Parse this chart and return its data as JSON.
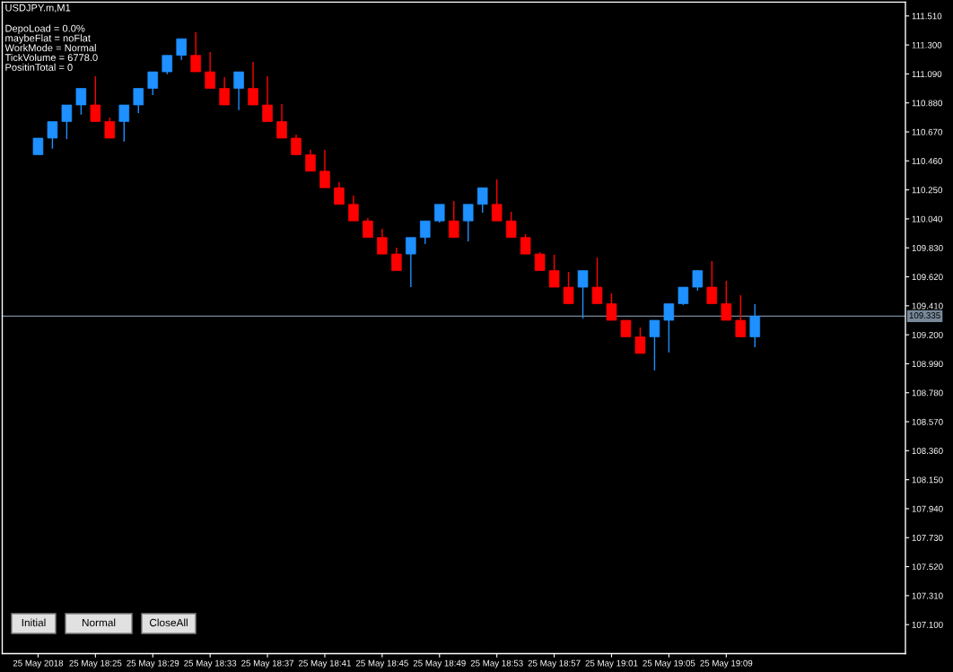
{
  "chart_data": {
    "type": "candlestick",
    "title": "USDJPY.m,M1",
    "annotations": [
      "DepoLoad = 0.0%",
      "maybeFlat = noFlat",
      "WorkMode = Normal",
      "TickVolume = 6778.0",
      "PositinTotal = 0",
      "Initial",
      "Normal",
      "CloseAll"
    ],
    "x": [
      "2018-05-25T18:21",
      "2018-05-25T18:22",
      "2018-05-25T18:23",
      "2018-05-25T18:24",
      "2018-05-25T18:25",
      "2018-05-25T18:26",
      "2018-05-25T18:27",
      "2018-05-25T18:28",
      "2018-05-25T18:29",
      "2018-05-25T18:30",
      "2018-05-25T18:31",
      "2018-05-25T18:32",
      "2018-05-25T18:33",
      "2018-05-25T18:34",
      "2018-05-25T18:35",
      "2018-05-25T18:36",
      "2018-05-25T18:37",
      "2018-05-25T18:38",
      "2018-05-25T18:39",
      "2018-05-25T18:40",
      "2018-05-25T18:41",
      "2018-05-25T18:42",
      "2018-05-25T18:43",
      "2018-05-25T18:44",
      "2018-05-25T18:45",
      "2018-05-25T18:46",
      "2018-05-25T18:47",
      "2018-05-25T18:48",
      "2018-05-25T18:49",
      "2018-05-25T18:50",
      "2018-05-25T18:51",
      "2018-05-25T18:52",
      "2018-05-25T18:53",
      "2018-05-25T18:54",
      "2018-05-25T18:55",
      "2018-05-25T18:56",
      "2018-05-25T18:57",
      "2018-05-25T18:58",
      "2018-05-25T18:59",
      "2018-05-25T19:00",
      "2018-05-25T19:01",
      "2018-05-25T19:02",
      "2018-05-25T19:03",
      "2018-05-25T19:04",
      "2018-05-25T19:05",
      "2018-05-25T19:06",
      "2018-05-25T19:07",
      "2018-05-25T19:08",
      "2018-05-25T19:09",
      "2018-05-25T19:10",
      "2018-05-25T19:11"
    ],
    "ohlc": [
      [
        110.505,
        110.625,
        110.505,
        110.625
      ],
      [
        110.625,
        110.745,
        110.548,
        110.745
      ],
      [
        110.745,
        110.865,
        110.618,
        110.865
      ],
      [
        110.865,
        110.985,
        110.795,
        110.985
      ],
      [
        110.865,
        111.073,
        110.745,
        110.745
      ],
      [
        110.745,
        110.774,
        110.625,
        110.625
      ],
      [
        110.745,
        110.865,
        110.6,
        110.865
      ],
      [
        110.865,
        110.985,
        110.806,
        110.985
      ],
      [
        110.985,
        111.105,
        110.936,
        111.105
      ],
      [
        111.105,
        111.225,
        111.088,
        111.225
      ],
      [
        111.225,
        111.345,
        111.192,
        111.345
      ],
      [
        111.225,
        111.393,
        111.105,
        111.105
      ],
      [
        111.105,
        111.248,
        110.985,
        110.985
      ],
      [
        110.985,
        111.066,
        110.865,
        110.865
      ],
      [
        110.985,
        111.105,
        110.828,
        111.105
      ],
      [
        110.985,
        111.177,
        110.865,
        110.865
      ],
      [
        110.865,
        111.073,
        110.745,
        110.745
      ],
      [
        110.745,
        110.871,
        110.625,
        110.625
      ],
      [
        110.625,
        110.65,
        110.505,
        110.505
      ],
      [
        110.505,
        110.54,
        110.385,
        110.385
      ],
      [
        110.385,
        110.54,
        110.265,
        110.265
      ],
      [
        110.265,
        110.306,
        110.145,
        110.145
      ],
      [
        110.145,
        110.209,
        110.025,
        110.025
      ],
      [
        110.025,
        110.046,
        109.905,
        109.905
      ],
      [
        109.905,
        109.968,
        109.785,
        109.785
      ],
      [
        109.785,
        109.832,
        109.665,
        109.665
      ],
      [
        109.785,
        109.905,
        109.546,
        109.905
      ],
      [
        109.905,
        110.025,
        109.858,
        110.025
      ],
      [
        110.025,
        110.145,
        110.014,
        110.145
      ],
      [
        110.025,
        110.17,
        109.905,
        109.905
      ],
      [
        110.025,
        110.145,
        109.877,
        110.145
      ],
      [
        110.145,
        110.265,
        110.085,
        110.265
      ],
      [
        110.145,
        110.326,
        110.025,
        110.025
      ],
      [
        110.025,
        110.092,
        109.905,
        109.905
      ],
      [
        109.905,
        109.929,
        109.785,
        109.785
      ],
      [
        109.785,
        109.799,
        109.665,
        109.665
      ],
      [
        109.665,
        109.78,
        109.545,
        109.545
      ],
      [
        109.545,
        109.656,
        109.425,
        109.425
      ],
      [
        109.545,
        109.665,
        109.318,
        109.665
      ],
      [
        109.545,
        109.76,
        109.425,
        109.425
      ],
      [
        109.425,
        109.5,
        109.305,
        109.305
      ],
      [
        109.305,
        109.305,
        109.185,
        109.185
      ],
      [
        109.185,
        109.253,
        109.065,
        109.065
      ],
      [
        109.185,
        109.305,
        108.942,
        109.305
      ],
      [
        109.305,
        109.425,
        109.072,
        109.425
      ],
      [
        109.425,
        109.545,
        109.416,
        109.545
      ],
      [
        109.545,
        109.665,
        109.52,
        109.665
      ],
      [
        109.545,
        109.734,
        109.425,
        109.425
      ],
      [
        109.425,
        109.591,
        109.305,
        109.305
      ],
      [
        109.305,
        109.487,
        109.185,
        109.185
      ],
      [
        109.185,
        109.422,
        109.11,
        109.335
      ]
    ],
    "colors": [
      "#1e90ff",
      "#1e90ff",
      "#1e90ff",
      "#1e90ff",
      "#ff0000",
      "#ff0000",
      "#1e90ff",
      "#1e90ff",
      "#1e90ff",
      "#1e90ff",
      "#1e90ff",
      "#ff0000",
      "#ff0000",
      "#ff0000",
      "#1e90ff",
      "#ff0000",
      "#ff0000",
      "#ff0000",
      "#ff0000",
      "#ff0000",
      "#ff0000",
      "#ff0000",
      "#ff0000",
      "#ff0000",
      "#ff0000",
      "#ff0000",
      "#1e90ff",
      "#1e90ff",
      "#1e90ff",
      "#ff0000",
      "#1e90ff",
      "#1e90ff",
      "#ff0000",
      "#ff0000",
      "#ff0000",
      "#ff0000",
      "#ff0000",
      "#ff0000",
      "#1e90ff",
      "#ff0000",
      "#ff0000",
      "#ff0000",
      "#ff0000",
      "#1e90ff",
      "#1e90ff",
      "#1e90ff",
      "#1e90ff",
      "#ff0000",
      "#ff0000",
      "#ff0000",
      "#1e90ff"
    ],
    "xlim": [
      "2018-05-25T18:18:30",
      "2018-05-25T19:21:30"
    ],
    "xticks": [
      {
        "value": "2018-05-25T18:21",
        "label": "25 May 2018"
      },
      {
        "value": "2018-05-25T18:25",
        "label": "25 May 18:25"
      },
      {
        "value": "2018-05-25T18:29",
        "label": "25 May 18:29"
      },
      {
        "value": "2018-05-25T18:33",
        "label": "25 May 18:33"
      },
      {
        "value": "2018-05-25T18:37",
        "label": "25 May 18:37"
      },
      {
        "value": "2018-05-25T18:41",
        "label": "25 May 18:41"
      },
      {
        "value": "2018-05-25T18:45",
        "label": "25 May 18:45"
      },
      {
        "value": "2018-05-25T18:49",
        "label": "25 May 18:49"
      },
      {
        "value": "2018-05-25T18:53",
        "label": "25 May 18:53"
      },
      {
        "value": "2018-05-25T18:57",
        "label": "25 May 18:57"
      },
      {
        "value": "2018-05-25T19:01",
        "label": "25 May 19:01"
      },
      {
        "value": "2018-05-25T19:05",
        "label": "25 May 19:05"
      },
      {
        "value": "2018-05-25T19:09",
        "label": "25 May 19:09"
      }
    ],
    "ylim": [
      106.89,
      111.61
    ],
    "yticks": [
      {
        "value": 107.1,
        "label": "107.100"
      },
      {
        "value": 107.31,
        "label": "107.310"
      },
      {
        "value": 107.52,
        "label": "107.520"
      },
      {
        "value": 107.73,
        "label": "107.730"
      },
      {
        "value": 107.94,
        "label": "107.940"
      },
      {
        "value": 108.15,
        "label": "108.150"
      },
      {
        "value": 108.36,
        "label": "108.360"
      },
      {
        "value": 108.57,
        "label": "108.570"
      },
      {
        "value": 108.78,
        "label": "108.780"
      },
      {
        "value": 108.99,
        "label": "108.990"
      },
      {
        "value": 109.2,
        "label": "109.200"
      },
      {
        "value": 109.41,
        "label": "109.410"
      },
      {
        "value": 109.62,
        "label": "109.620"
      },
      {
        "value": 109.83,
        "label": "109.830"
      },
      {
        "value": 110.04,
        "label": "110.040"
      },
      {
        "value": 110.25,
        "label": "110.250"
      },
      {
        "value": 110.46,
        "label": "110.460"
      },
      {
        "value": 110.67,
        "label": "110.670"
      },
      {
        "value": 110.88,
        "label": "110.880"
      },
      {
        "value": 111.09,
        "label": "111.090"
      },
      {
        "value": 111.3,
        "label": "111.300"
      },
      {
        "value": 111.51,
        "label": "111.510"
      }
    ],
    "ref_lines": [
      {
        "axis": "y",
        "value": 109.335,
        "label": "109.335",
        "color": "#778899"
      }
    ]
  }
}
